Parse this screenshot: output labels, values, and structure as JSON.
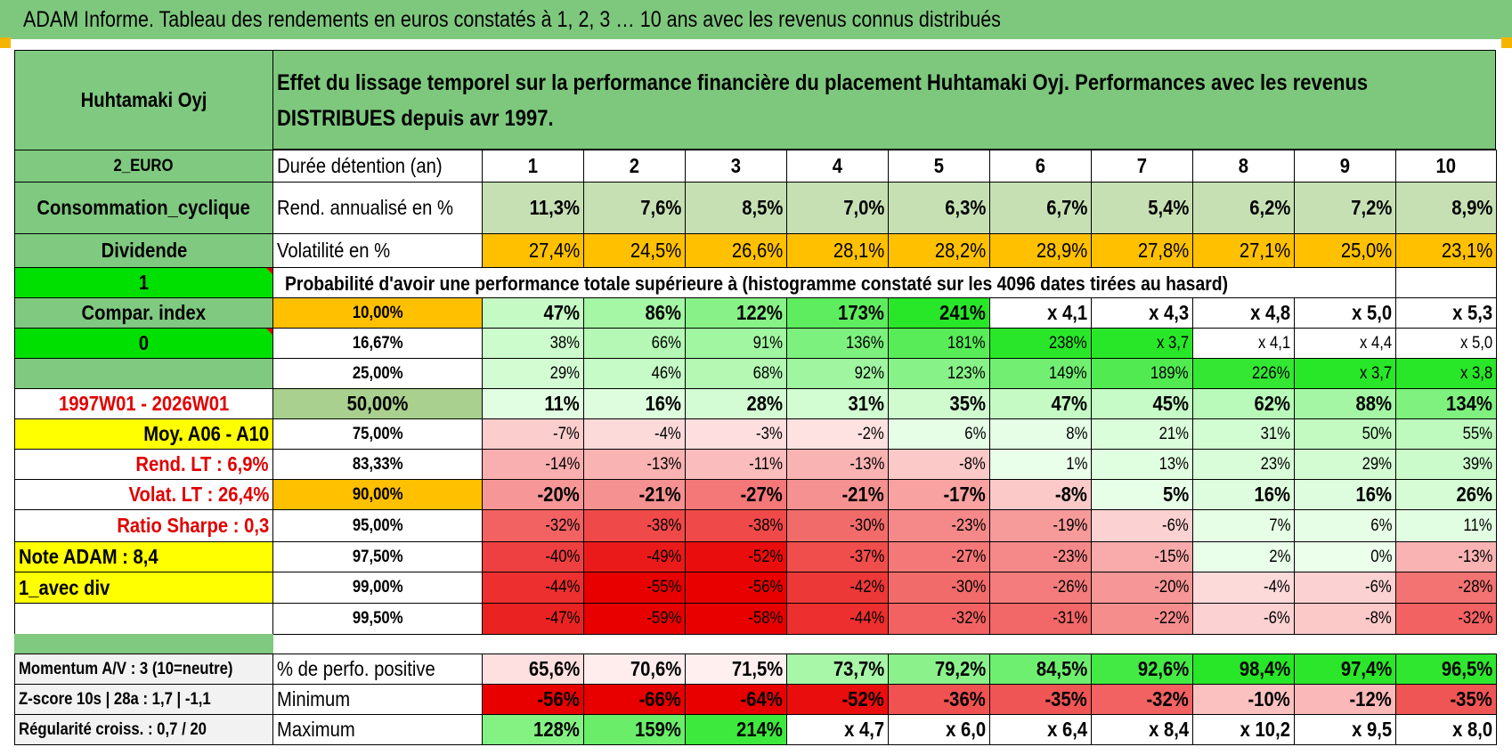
{
  "title": "ADAM Informe. Tableau des rendements en euros constatés à 1, 2, 3 … 10 ans avec les revenus connus distribués",
  "asset": {
    "name": "Huhtamaki Oyj",
    "currency": "2_EURO",
    "sector": "Consommation_cyclique",
    "income_type": "Dividende",
    "flag_value": "1",
    "compare_label": "Compar. index",
    "compare_value": "0",
    "period": "1997W01 - 2026W01",
    "moy": "Moy. A06 - A10",
    "rend_lt": "Rend. LT :    6,9%",
    "volat_lt": "Volat. LT :    26,4%",
    "sharpe": "Ratio Sharpe :     0,3",
    "note": "Note ADAM : 8,4",
    "mode": "1_avec div"
  },
  "description": "Effet du lissage temporel sur la performance financière du placement Huhtamaki Oyj. Performances avec les revenus DISTRIBUES depuis avr 1997.",
  "table": {
    "duration_label": "Durée détention (an)",
    "years": [
      "1",
      "2",
      "3",
      "4",
      "5",
      "6",
      "7",
      "8",
      "9",
      "10"
    ],
    "rend_label": "Rend. annualisé en %",
    "rend": [
      "11,3%",
      "7,6%",
      "8,5%",
      "7,0%",
      "6,3%",
      "6,7%",
      "5,4%",
      "6,2%",
      "7,2%",
      "8,9%"
    ],
    "vol_label": "Volatilité en %",
    "vol": [
      "27,4%",
      "24,5%",
      "26,6%",
      "28,1%",
      "28,2%",
      "28,9%",
      "27,8%",
      "27,1%",
      "25,0%",
      "23,1%"
    ],
    "prob_title": "Probabilité d'avoir une performance totale supérieure à (histogramme constaté sur les 4096 dates tirées au hasard)",
    "prob_rows": [
      {
        "p": "10,00%",
        "v": [
          "47%",
          "86%",
          "122%",
          "173%",
          "241%",
          "x 4,1",
          "x 4,3",
          "x 4,8",
          "x 5,0",
          "x 5,3"
        ]
      },
      {
        "p": "16,67%",
        "v": [
          "38%",
          "66%",
          "91%",
          "136%",
          "181%",
          "238%",
          "x 3,7",
          "x 4,1",
          "x 4,4",
          "x 5,0"
        ]
      },
      {
        "p": "25,00%",
        "v": [
          "29%",
          "46%",
          "68%",
          "92%",
          "123%",
          "149%",
          "189%",
          "226%",
          "x 3,7",
          "x 3,8"
        ]
      },
      {
        "p": "50,00%",
        "v": [
          "11%",
          "16%",
          "28%",
          "31%",
          "35%",
          "47%",
          "45%",
          "62%",
          "88%",
          "134%"
        ]
      },
      {
        "p": "75,00%",
        "v": [
          "-7%",
          "-4%",
          "-3%",
          "-2%",
          "6%",
          "8%",
          "21%",
          "31%",
          "50%",
          "55%"
        ]
      },
      {
        "p": "83,33%",
        "v": [
          "-14%",
          "-13%",
          "-11%",
          "-13%",
          "-8%",
          "1%",
          "13%",
          "23%",
          "29%",
          "39%"
        ]
      },
      {
        "p": "90,00%",
        "v": [
          "-20%",
          "-21%",
          "-27%",
          "-21%",
          "-17%",
          "-8%",
          "5%",
          "16%",
          "16%",
          "26%"
        ]
      },
      {
        "p": "95,00%",
        "v": [
          "-32%",
          "-38%",
          "-38%",
          "-30%",
          "-23%",
          "-19%",
          "-6%",
          "7%",
          "6%",
          "11%"
        ]
      },
      {
        "p": "97,50%",
        "v": [
          "-40%",
          "-49%",
          "-52%",
          "-37%",
          "-27%",
          "-23%",
          "-15%",
          "2%",
          "0%",
          "-13%"
        ]
      },
      {
        "p": "99,00%",
        "v": [
          "-44%",
          "-55%",
          "-56%",
          "-42%",
          "-30%",
          "-26%",
          "-20%",
          "-4%",
          "-6%",
          "-28%"
        ]
      },
      {
        "p": "99,50%",
        "v": [
          "-47%",
          "-59%",
          "-58%",
          "-44%",
          "-32%",
          "-31%",
          "-22%",
          "-6%",
          "-8%",
          "-32%"
        ]
      }
    ],
    "bottom_rows": [
      {
        "left": "Momentum A/V : 3 (10=neutre)",
        "label": "% de perfo. positive",
        "v": [
          "65,6%",
          "70,6%",
          "71,5%",
          "73,7%",
          "79,2%",
          "84,5%",
          "92,6%",
          "98,4%",
          "97,4%",
          "96,5%"
        ]
      },
      {
        "left": "Z-score 10s | 28a : 1,7 | -1,1",
        "label": "Minimum",
        "v": [
          "-56%",
          "-66%",
          "-64%",
          "-52%",
          "-36%",
          "-35%",
          "-32%",
          "-10%",
          "-12%",
          "-35%"
        ]
      },
      {
        "left": "Régularité croiss. : 0,7 / 20",
        "label": "Maximum",
        "v": [
          "128%",
          "159%",
          "214%",
          "x 4,7",
          "x 6,0",
          "x 6,4",
          "x 8,4",
          "x 10,2",
          "x 9,5",
          "x 8,0"
        ]
      }
    ]
  },
  "colors": {
    "banner": "#7ec87e",
    "header_green": "#80c980",
    "bright_green": "#00e000",
    "yellow": "#ffff00",
    "orange": "#ffc000",
    "red_text": "#e00000"
  }
}
